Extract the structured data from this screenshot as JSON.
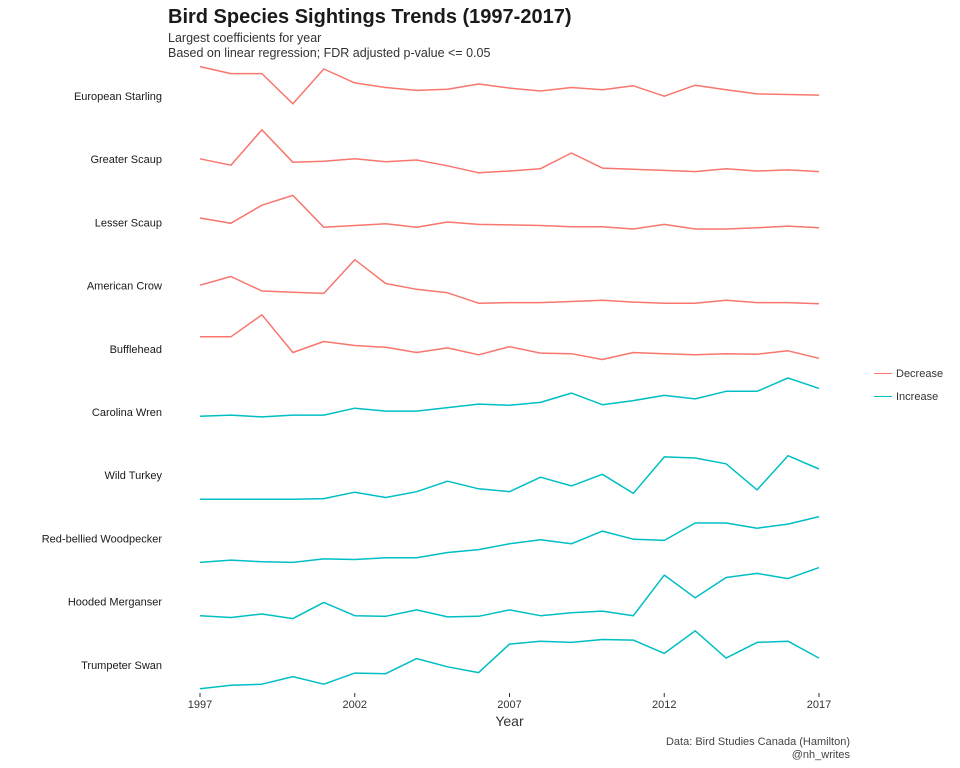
{
  "title": "Bird Species Sightings Trends (1997-2017)",
  "subtitle_line1": "Largest coefficients for year",
  "subtitle_line2": "Based on linear regression; FDR adjusted p-value <= 0.05",
  "caption_line1": "Data: Bird Studies Canada (Hamilton)",
  "caption_line2": "@nh_writes",
  "legend": [
    {
      "label": "Decrease",
      "color": "#F8766D"
    },
    {
      "label": "Increase",
      "color": "#00BFC4"
    }
  ],
  "chart_data": {
    "type": "line",
    "xlabel": "Year",
    "x_ticks": [
      1997,
      2002,
      2007,
      2012,
      2017
    ],
    "x": [
      1997,
      1998,
      1999,
      2000,
      2001,
      2002,
      2003,
      2004,
      2005,
      2006,
      2007,
      2008,
      2009,
      2010,
      2011,
      2012,
      2013,
      2014,
      2015,
      2016,
      2017
    ],
    "y_scale": "independent per series (ridge-style, no y axis shown)",
    "grid": false,
    "legend_position": "right",
    "series": [
      {
        "name": "European Starling",
        "trend": "Decrease",
        "values": [
          0.92,
          0.8,
          0.8,
          0.28,
          0.88,
          0.64,
          0.56,
          0.51,
          0.53,
          0.62,
          0.55,
          0.5,
          0.56,
          0.52,
          0.59,
          0.41,
          0.6,
          0.52,
          0.45,
          0.44,
          0.43
        ]
      },
      {
        "name": "Greater Scaup",
        "trend": "Decrease",
        "values": [
          0.42,
          0.31,
          0.92,
          0.36,
          0.38,
          0.42,
          0.37,
          0.4,
          0.3,
          0.18,
          0.21,
          0.25,
          0.52,
          0.26,
          0.24,
          0.22,
          0.2,
          0.25,
          0.21,
          0.23,
          0.2
        ]
      },
      {
        "name": "Lesser Scaup",
        "trend": "Decrease",
        "values": [
          0.49,
          0.4,
          0.71,
          0.88,
          0.33,
          0.36,
          0.39,
          0.33,
          0.42,
          0.38,
          0.37,
          0.36,
          0.34,
          0.34,
          0.3,
          0.38,
          0.3,
          0.3,
          0.32,
          0.35,
          0.32
        ]
      },
      {
        "name": "American Crow",
        "trend": "Decrease",
        "values": [
          0.42,
          0.57,
          0.32,
          0.3,
          0.28,
          0.86,
          0.45,
          0.35,
          0.29,
          0.11,
          0.12,
          0.12,
          0.14,
          0.16,
          0.13,
          0.11,
          0.11,
          0.16,
          0.12,
          0.12,
          0.1
        ]
      },
      {
        "name": "Bufflehead",
        "trend": "Decrease",
        "values": [
          0.62,
          0.62,
          1.0,
          0.35,
          0.54,
          0.47,
          0.44,
          0.35,
          0.43,
          0.31,
          0.45,
          0.34,
          0.33,
          0.23,
          0.35,
          0.33,
          0.31,
          0.33,
          0.32,
          0.38,
          0.25
        ]
      },
      {
        "name": "Carolina Wren",
        "trend": "Increase",
        "values": [
          0.34,
          0.36,
          0.33,
          0.36,
          0.36,
          0.48,
          0.43,
          0.43,
          0.49,
          0.55,
          0.53,
          0.58,
          0.74,
          0.54,
          0.61,
          0.7,
          0.64,
          0.77,
          0.77,
          1.0,
          0.82
        ]
      },
      {
        "name": "Wild Turkey",
        "trend": "Increase",
        "values": [
          0.0,
          0.0,
          0.0,
          0.0,
          0.01,
          0.12,
          0.03,
          0.13,
          0.31,
          0.18,
          0.13,
          0.38,
          0.23,
          0.43,
          0.1,
          0.73,
          0.71,
          0.61,
          0.16,
          0.75,
          0.52
        ]
      },
      {
        "name": "Red-bellied Woodpecker",
        "trend": "Increase",
        "values": [
          0.0,
          0.04,
          0.01,
          0.0,
          0.06,
          0.05,
          0.08,
          0.08,
          0.17,
          0.22,
          0.32,
          0.39,
          0.32,
          0.54,
          0.4,
          0.38,
          0.68,
          0.68,
          0.59,
          0.66,
          0.79
        ]
      },
      {
        "name": "Hooded Merganser",
        "trend": "Increase",
        "values": [
          0.17,
          0.14,
          0.2,
          0.12,
          0.4,
          0.17,
          0.16,
          0.27,
          0.15,
          0.16,
          0.27,
          0.17,
          0.22,
          0.25,
          0.17,
          0.87,
          0.48,
          0.83,
          0.9,
          0.81,
          1.0
        ]
      },
      {
        "name": "Trumpeter Swan",
        "trend": "Increase",
        "values": [
          0.0,
          0.06,
          0.08,
          0.21,
          0.08,
          0.27,
          0.26,
          0.52,
          0.38,
          0.28,
          0.77,
          0.82,
          0.8,
          0.85,
          0.84,
          0.61,
          1.0,
          0.53,
          0.8,
          0.82,
          0.53
        ]
      }
    ]
  }
}
